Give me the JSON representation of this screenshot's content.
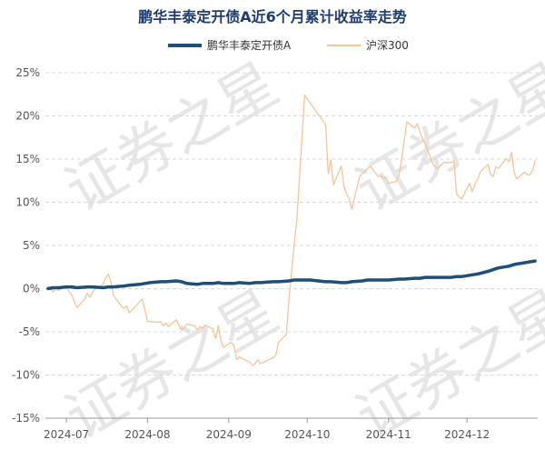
{
  "chart_data": {
    "type": "line",
    "title": "鹏华丰泰定开债A近6个月累计收益率走势",
    "watermark": "证券之星",
    "x_tick_labels": [
      "2024-07",
      "2024-08",
      "2024-09",
      "2024-10",
      "2024-11",
      "2024-12"
    ],
    "x_range": [
      "2024-06-23",
      "2024-12-28"
    ],
    "y_tick_labels": [
      "25%",
      "20%",
      "15%",
      "10%",
      "5%",
      "0%",
      "-5%",
      "-10%",
      "-15%"
    ],
    "y_ticks": [
      25,
      20,
      15,
      10,
      5,
      0,
      -5,
      -10,
      -15
    ],
    "ylim": [
      -15,
      25
    ],
    "grid": "horizontal dashed",
    "legend_position": "top-center",
    "colors": {
      "fund": "#1f4e79",
      "index": "#f5c49a",
      "title": "#1f3c6e"
    },
    "series": [
      {
        "name": "鹏华丰泰定开债A",
        "points": [
          [
            "2024-06-24",
            0.0
          ],
          [
            "2024-06-26",
            0.1
          ],
          [
            "2024-06-28",
            0.1
          ],
          [
            "2024-07-01",
            0.2
          ],
          [
            "2024-07-03",
            0.2
          ],
          [
            "2024-07-05",
            0.1
          ],
          [
            "2024-07-09",
            0.2
          ],
          [
            "2024-07-11",
            0.2
          ],
          [
            "2024-07-15",
            0.1
          ],
          [
            "2024-07-17",
            0.2
          ],
          [
            "2024-07-19",
            0.2
          ],
          [
            "2024-07-23",
            0.3
          ],
          [
            "2024-07-25",
            0.4
          ],
          [
            "2024-07-29",
            0.5
          ],
          [
            "2024-07-31",
            0.6
          ],
          [
            "2024-08-02",
            0.7
          ],
          [
            "2024-08-06",
            0.8
          ],
          [
            "2024-08-08",
            0.8
          ],
          [
            "2024-08-12",
            0.9
          ],
          [
            "2024-08-14",
            0.8
          ],
          [
            "2024-08-16",
            0.6
          ],
          [
            "2024-08-20",
            0.5
          ],
          [
            "2024-08-22",
            0.6
          ],
          [
            "2024-08-26",
            0.6
          ],
          [
            "2024-08-28",
            0.7
          ],
          [
            "2024-08-30",
            0.6
          ],
          [
            "2024-09-03",
            0.6
          ],
          [
            "2024-09-05",
            0.7
          ],
          [
            "2024-09-09",
            0.6
          ],
          [
            "2024-09-11",
            0.7
          ],
          [
            "2024-09-13",
            0.7
          ],
          [
            "2024-09-18",
            0.8
          ],
          [
            "2024-09-20",
            0.8
          ],
          [
            "2024-09-24",
            0.9
          ],
          [
            "2024-09-26",
            1.0
          ],
          [
            "2024-09-30",
            1.0
          ],
          [
            "2024-10-02",
            1.0
          ],
          [
            "2024-10-08",
            0.8
          ],
          [
            "2024-10-10",
            0.8
          ],
          [
            "2024-10-14",
            0.7
          ],
          [
            "2024-10-16",
            0.7
          ],
          [
            "2024-10-18",
            0.8
          ],
          [
            "2024-10-22",
            0.9
          ],
          [
            "2024-10-24",
            1.0
          ],
          [
            "2024-10-28",
            1.0
          ],
          [
            "2024-10-30",
            1.0
          ],
          [
            "2024-11-01",
            1.0
          ],
          [
            "2024-11-05",
            1.1
          ],
          [
            "2024-11-07",
            1.1
          ],
          [
            "2024-11-11",
            1.2
          ],
          [
            "2024-11-13",
            1.2
          ],
          [
            "2024-11-15",
            1.3
          ],
          [
            "2024-11-19",
            1.3
          ],
          [
            "2024-11-21",
            1.3
          ],
          [
            "2024-11-25",
            1.3
          ],
          [
            "2024-11-27",
            1.4
          ],
          [
            "2024-11-29",
            1.4
          ],
          [
            "2024-12-03",
            1.6
          ],
          [
            "2024-12-05",
            1.7
          ],
          [
            "2024-12-09",
            2.0
          ],
          [
            "2024-12-11",
            2.2
          ],
          [
            "2024-12-13",
            2.4
          ],
          [
            "2024-12-17",
            2.6
          ],
          [
            "2024-12-19",
            2.8
          ],
          [
            "2024-12-23",
            3.0
          ],
          [
            "2024-12-25",
            3.1
          ],
          [
            "2024-12-27",
            3.2
          ]
        ]
      },
      {
        "name": "沪深300",
        "points": [
          [
            "2024-06-24",
            0.2
          ],
          [
            "2024-06-25",
            0.0
          ],
          [
            "2024-06-26",
            -0.4
          ],
          [
            "2024-06-27",
            0.1
          ],
          [
            "2024-06-28",
            -0.2
          ],
          [
            "2024-07-01",
            0.3
          ],
          [
            "2024-07-02",
            -0.3
          ],
          [
            "2024-07-03",
            -0.7
          ],
          [
            "2024-07-04",
            -1.5
          ],
          [
            "2024-07-05",
            -2.2
          ],
          [
            "2024-07-08",
            -1.2
          ],
          [
            "2024-07-09",
            -0.5
          ],
          [
            "2024-07-10",
            -1.0
          ],
          [
            "2024-07-11",
            -0.4
          ],
          [
            "2024-07-12",
            0.0
          ],
          [
            "2024-07-15",
            0.5
          ],
          [
            "2024-07-16",
            1.2
          ],
          [
            "2024-07-17",
            1.7
          ],
          [
            "2024-07-18",
            0.8
          ],
          [
            "2024-07-19",
            -0.8
          ],
          [
            "2024-07-22",
            -2.0
          ],
          [
            "2024-07-23",
            -2.3
          ],
          [
            "2024-07-24",
            -2.0
          ],
          [
            "2024-07-25",
            -2.8
          ],
          [
            "2024-07-26",
            -2.5
          ],
          [
            "2024-07-29",
            -1.5
          ],
          [
            "2024-07-30",
            -1.2
          ],
          [
            "2024-07-31",
            -2.5
          ],
          [
            "2024-08-01",
            -3.8
          ],
          [
            "2024-08-02",
            -3.8
          ],
          [
            "2024-08-05",
            -3.9
          ],
          [
            "2024-08-06",
            -3.8
          ],
          [
            "2024-08-07",
            -4.3
          ],
          [
            "2024-08-08",
            -4.0
          ],
          [
            "2024-08-09",
            -4.4
          ],
          [
            "2024-08-12",
            -3.6
          ],
          [
            "2024-08-13",
            -4.2
          ],
          [
            "2024-08-14",
            -4.8
          ],
          [
            "2024-08-15",
            -4.5
          ],
          [
            "2024-08-16",
            -4.1
          ],
          [
            "2024-08-19",
            -4.3
          ],
          [
            "2024-08-20",
            -4.8
          ],
          [
            "2024-08-21",
            -4.4
          ],
          [
            "2024-08-22",
            -4.6
          ],
          [
            "2024-08-23",
            -4.2
          ],
          [
            "2024-08-26",
            -4.7
          ],
          [
            "2024-08-27",
            -5.8
          ],
          [
            "2024-08-28",
            -4.3
          ],
          [
            "2024-08-29",
            -6.0
          ],
          [
            "2024-08-30",
            -6.8
          ],
          [
            "2024-09-02",
            -6.2
          ],
          [
            "2024-09-03",
            -6.6
          ],
          [
            "2024-09-04",
            -8.2
          ],
          [
            "2024-09-05",
            -7.9
          ],
          [
            "2024-09-06",
            -8.1
          ],
          [
            "2024-09-09",
            -8.5
          ],
          [
            "2024-09-10",
            -8.9
          ],
          [
            "2024-09-11",
            -8.7
          ],
          [
            "2024-09-12",
            -8.2
          ],
          [
            "2024-09-13",
            -8.7
          ],
          [
            "2024-09-18",
            -8.0
          ],
          [
            "2024-09-19",
            -7.7
          ],
          [
            "2024-09-20",
            -6.2
          ],
          [
            "2024-09-23",
            -5.3
          ],
          [
            "2024-09-24",
            -1.4
          ],
          [
            "2024-09-25",
            2.0
          ],
          [
            "2024-09-26",
            5.1
          ],
          [
            "2024-09-27",
            8.0
          ],
          [
            "2024-09-30",
            22.4
          ],
          [
            "2024-10-08",
            19.0
          ],
          [
            "2024-10-09",
            13.3
          ],
          [
            "2024-10-10",
            14.9
          ],
          [
            "2024-10-11",
            12.0
          ],
          [
            "2024-10-14",
            14.2
          ],
          [
            "2024-10-15",
            11.8
          ],
          [
            "2024-10-16",
            11.0
          ],
          [
            "2024-10-17",
            10.4
          ],
          [
            "2024-10-18",
            9.2
          ],
          [
            "2024-10-21",
            13.0
          ],
          [
            "2024-10-22",
            13.3
          ],
          [
            "2024-10-23",
            13.6
          ],
          [
            "2024-10-24",
            13.9
          ],
          [
            "2024-10-25",
            14.2
          ],
          [
            "2024-10-28",
            13.0
          ],
          [
            "2024-10-29",
            13.1
          ],
          [
            "2024-10-30",
            12.8
          ],
          [
            "2024-10-31",
            12.9
          ],
          [
            "2024-11-01",
            12.2
          ],
          [
            "2024-11-04",
            12.4
          ],
          [
            "2024-11-05",
            13.1
          ],
          [
            "2024-11-06",
            14.9
          ],
          [
            "2024-11-07",
            17.1
          ],
          [
            "2024-11-08",
            19.3
          ],
          [
            "2024-11-11",
            18.6
          ],
          [
            "2024-11-12",
            19.1
          ],
          [
            "2024-11-13",
            18.2
          ],
          [
            "2024-11-14",
            17.3
          ],
          [
            "2024-11-15",
            16.8
          ],
          [
            "2024-11-18",
            14.4
          ],
          [
            "2024-11-19",
            14.0
          ],
          [
            "2024-11-20",
            13.9
          ],
          [
            "2024-11-21",
            14.3
          ],
          [
            "2024-11-22",
            14.6
          ],
          [
            "2024-11-25",
            14.6
          ],
          [
            "2024-11-26",
            14.8
          ],
          [
            "2024-11-27",
            11.0
          ],
          [
            "2024-11-28",
            10.6
          ],
          [
            "2024-11-29",
            10.4
          ],
          [
            "2024-12-02",
            12.2
          ],
          [
            "2024-12-03",
            11.2
          ],
          [
            "2024-12-04",
            12.1
          ],
          [
            "2024-12-05",
            12.6
          ],
          [
            "2024-12-06",
            13.5
          ],
          [
            "2024-12-09",
            14.4
          ],
          [
            "2024-12-10",
            13.2
          ],
          [
            "2024-12-11",
            13.0
          ],
          [
            "2024-12-12",
            14.1
          ],
          [
            "2024-12-13",
            13.9
          ],
          [
            "2024-12-16",
            15.1
          ],
          [
            "2024-12-17",
            14.7
          ],
          [
            "2024-12-18",
            15.8
          ],
          [
            "2024-12-19",
            13.5
          ],
          [
            "2024-12-20",
            12.7
          ],
          [
            "2024-12-23",
            13.5
          ],
          [
            "2024-12-24",
            13.2
          ],
          [
            "2024-12-25",
            13.2
          ],
          [
            "2024-12-26",
            13.6
          ],
          [
            "2024-12-27",
            14.8
          ]
        ]
      }
    ]
  }
}
